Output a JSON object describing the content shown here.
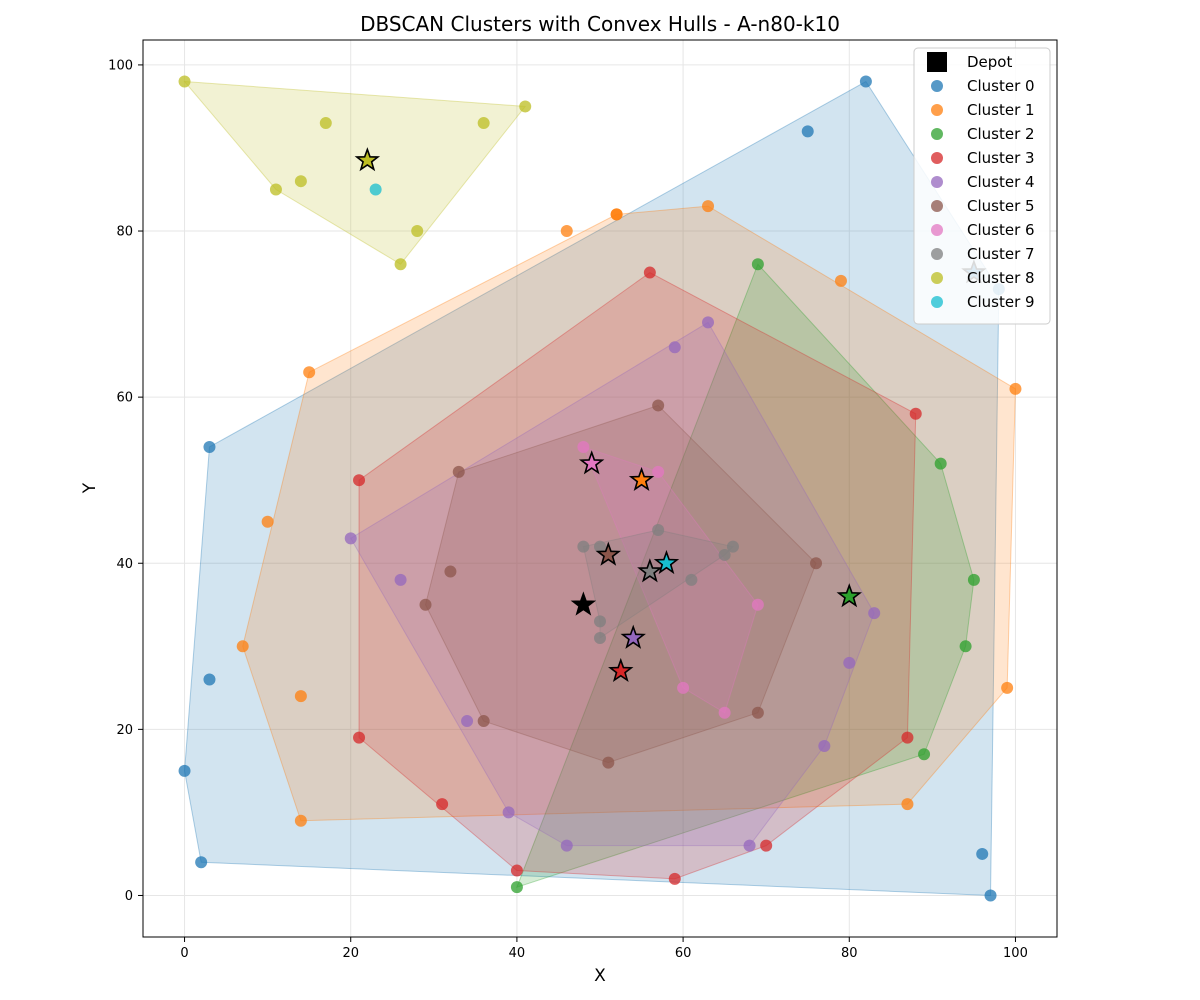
{
  "chart_data": {
    "type": "scatter",
    "title": "DBSCAN Clusters with Convex Hulls - A-n80-k10",
    "xlabel": "X",
    "ylabel": "Y",
    "xlim": [
      -5,
      105
    ],
    "ylim": [
      -5,
      103
    ],
    "xticks": [
      0,
      20,
      40,
      60,
      80,
      100
    ],
    "yticks": [
      0,
      20,
      40,
      60,
      80,
      100
    ],
    "grid": true,
    "legend_position": "top-right",
    "depot": {
      "label": "Depot",
      "x": 48,
      "y": 35,
      "color": "#000000"
    },
    "series": [
      {
        "name": "Cluster 0",
        "color": "#1f77b4",
        "points": [
          [
            82,
            98
          ],
          [
            75,
            92
          ],
          [
            3,
            54
          ],
          [
            3,
            26
          ],
          [
            0,
            15
          ],
          [
            2,
            4
          ],
          [
            96,
            5
          ],
          [
            97,
            0
          ],
          [
            98,
            73
          ]
        ],
        "hull": [
          [
            82,
            98
          ],
          [
            98,
            73
          ],
          [
            97,
            0
          ],
          [
            2,
            4
          ],
          [
            0,
            15
          ],
          [
            3,
            54
          ]
        ],
        "centroid": [
          95,
          75
        ]
      },
      {
        "name": "Cluster 1",
        "color": "#ff7f0e",
        "points": [
          [
            52,
            82
          ],
          [
            63,
            83
          ],
          [
            46,
            80
          ],
          [
            79,
            74
          ],
          [
            15,
            63
          ],
          [
            100,
            61
          ],
          [
            10,
            45
          ],
          [
            7,
            30
          ],
          [
            14,
            24
          ],
          [
            14,
            9
          ],
          [
            87,
            11
          ],
          [
            99,
            25
          ],
          [
            52,
            82
          ]
        ],
        "hull": [
          [
            52,
            82
          ],
          [
            63,
            83
          ],
          [
            100,
            61
          ],
          [
            99,
            25
          ],
          [
            87,
            11
          ],
          [
            14,
            9
          ],
          [
            7,
            30
          ],
          [
            15,
            63
          ]
        ],
        "centroid": [
          55,
          50
        ]
      },
      {
        "name": "Cluster 2",
        "color": "#2ca02c",
        "points": [
          [
            69,
            76
          ],
          [
            91,
            52
          ],
          [
            95,
            38
          ],
          [
            94,
            30
          ],
          [
            89,
            17
          ],
          [
            40,
            1
          ]
        ],
        "hull": [
          [
            69,
            76
          ],
          [
            91,
            52
          ],
          [
            95,
            38
          ],
          [
            94,
            30
          ],
          [
            89,
            17
          ],
          [
            40,
            1
          ]
        ],
        "centroid": [
          80,
          36
        ]
      },
      {
        "name": "Cluster 3",
        "color": "#d62728",
        "points": [
          [
            56,
            75
          ],
          [
            88,
            58
          ],
          [
            21,
            50
          ],
          [
            21,
            19
          ],
          [
            31,
            11
          ],
          [
            40,
            3
          ],
          [
            59,
            2
          ],
          [
            70,
            6
          ],
          [
            87,
            19
          ]
        ],
        "hull": [
          [
            56,
            75
          ],
          [
            88,
            58
          ],
          [
            87,
            19
          ],
          [
            70,
            6
          ],
          [
            59,
            2
          ],
          [
            40,
            3
          ],
          [
            21,
            19
          ],
          [
            21,
            50
          ]
        ],
        "centroid": [
          52.5,
          27
        ]
      },
      {
        "name": "Cluster 4",
        "color": "#9467bd",
        "points": [
          [
            63,
            69
          ],
          [
            59,
            66
          ],
          [
            20,
            43
          ],
          [
            26,
            38
          ],
          [
            34,
            21
          ],
          [
            39,
            10
          ],
          [
            46,
            6
          ],
          [
            68,
            6
          ],
          [
            77,
            18
          ],
          [
            80,
            28
          ],
          [
            83,
            34
          ]
        ],
        "hull": [
          [
            63,
            69
          ],
          [
            83,
            34
          ],
          [
            77,
            18
          ],
          [
            68,
            6
          ],
          [
            46,
            6
          ],
          [
            39,
            10
          ],
          [
            20,
            43
          ]
        ],
        "centroid": [
          54,
          31
        ]
      },
      {
        "name": "Cluster 5",
        "color": "#8c564b",
        "points": [
          [
            57,
            59
          ],
          [
            33,
            51
          ],
          [
            32,
            39
          ],
          [
            29,
            35
          ],
          [
            36,
            21
          ],
          [
            51,
            16
          ],
          [
            69,
            22
          ],
          [
            76,
            40
          ]
        ],
        "hull": [
          [
            57,
            59
          ],
          [
            76,
            40
          ],
          [
            69,
            22
          ],
          [
            51,
            16
          ],
          [
            36,
            21
          ],
          [
            29,
            35
          ],
          [
            33,
            51
          ]
        ],
        "centroid": [
          51,
          41
        ]
      },
      {
        "name": "Cluster 6",
        "color": "#e377c2",
        "points": [
          [
            48,
            54
          ],
          [
            57,
            51
          ],
          [
            69,
            35
          ],
          [
            65,
            22
          ],
          [
            60,
            25
          ]
        ],
        "hull": [
          [
            48,
            54
          ],
          [
            57,
            51
          ],
          [
            69,
            35
          ],
          [
            65,
            22
          ],
          [
            60,
            25
          ]
        ],
        "centroid": [
          49,
          52
        ]
      },
      {
        "name": "Cluster 7",
        "color": "#7f7f7f",
        "points": [
          [
            57,
            44
          ],
          [
            48,
            42
          ],
          [
            50,
            42
          ],
          [
            65,
            41
          ],
          [
            66,
            42
          ],
          [
            61,
            38
          ],
          [
            50,
            33
          ],
          [
            50,
            31
          ]
        ],
        "hull": [
          [
            57,
            44
          ],
          [
            66,
            42
          ],
          [
            65,
            41
          ],
          [
            50,
            31
          ],
          [
            50,
            33
          ],
          [
            48,
            42
          ]
        ],
        "centroid": [
          56,
          39
        ]
      },
      {
        "name": "Cluster 8",
        "color": "#bcbd22",
        "points": [
          [
            0,
            98
          ],
          [
            41,
            95
          ],
          [
            17,
            93
          ],
          [
            36,
            93
          ],
          [
            14,
            86
          ],
          [
            11,
            85
          ],
          [
            28,
            80
          ],
          [
            26,
            76
          ]
        ],
        "hull": [
          [
            0,
            98
          ],
          [
            41,
            95
          ],
          [
            26,
            76
          ],
          [
            11,
            85
          ]
        ],
        "centroid": [
          22,
          88.5
        ]
      },
      {
        "name": "Cluster 9",
        "color": "#17becf",
        "points": [
          [
            23,
            85
          ]
        ],
        "hull": [],
        "centroid": [
          58,
          40
        ]
      }
    ]
  }
}
